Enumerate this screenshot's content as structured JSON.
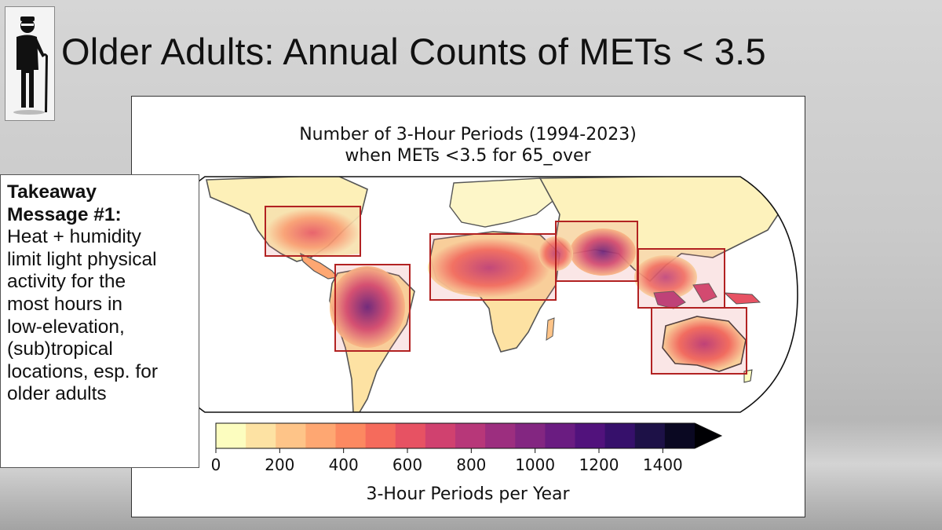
{
  "slide": {
    "title": "Older Adults: Annual Counts of METs < 3.5",
    "icon": "elderly-person-with-cane-icon"
  },
  "takeaway": {
    "heading_line1": "Takeaway",
    "heading_line2": "Message #1:",
    "body_lines": [
      "Heat + humidity",
      "limit light physical",
      "activity for the",
      "most hours in",
      "low-elevation,",
      "(sub)tropical",
      "locations, esp. for",
      "older adults"
    ]
  },
  "chart_data": {
    "type": "heatmap",
    "title_line1": "Number of 3-Hour Periods (1994-2023)",
    "title_line2": "when METs <3.5 for 65_over",
    "colorbar": {
      "label": "3-Hour Periods per Year",
      "min": 0,
      "max": 1500,
      "ticks": [
        0,
        200,
        400,
        600,
        800,
        1000,
        1200,
        1400
      ],
      "tick_labels": [
        "0",
        "200",
        "400",
        "600",
        "800",
        "1000",
        "1200",
        "1400"
      ],
      "extend": "max",
      "colormap": "magma_r",
      "colors": [
        "#fcfdbf",
        "#fde2a3",
        "#fec488",
        "#fea772",
        "#fc8961",
        "#f56b5c",
        "#e75263",
        "#d0416f",
        "#b73779",
        "#9c2e7f",
        "#832681",
        "#6a1c81",
        "#51127c",
        "#36106b",
        "#1d1147",
        "#0a0822",
        "#000004"
      ]
    },
    "highlight_regions": [
      "Southern North America / Gulf of Mexico",
      "Northern South America / Amazon",
      "Sahel / Northern Africa",
      "South Asia",
      "Southeast Asia / Maritime Continent",
      "Australia"
    ],
    "highlight_color": "#b22222"
  }
}
